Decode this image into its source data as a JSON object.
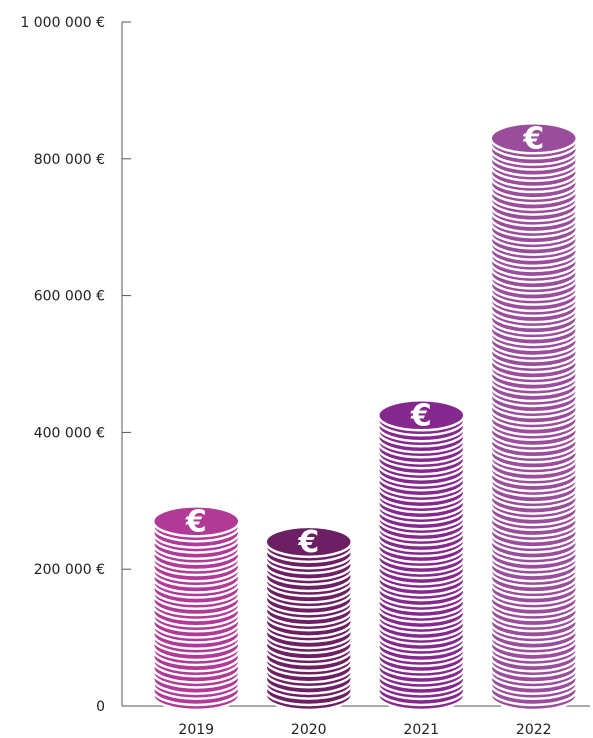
{
  "chart_data": {
    "type": "bar",
    "style": "coin-stacks",
    "categories": [
      "2019",
      "2020",
      "2021",
      "2022"
    ],
    "values": [
      270000,
      240000,
      425000,
      830000
    ],
    "colors": [
      "#b03a96",
      "#6d1f63",
      "#85288e",
      "#9a4d9b"
    ],
    "ylim": [
      0,
      1000000
    ],
    "yticks": [
      {
        "value": 0,
        "label": "0"
      },
      {
        "value": 200000,
        "label": "200 000 €"
      },
      {
        "value": 400000,
        "label": "400 000 €"
      },
      {
        "value": 600000,
        "label": "600 000 €"
      },
      {
        "value": 800000,
        "label": "800 000 €"
      },
      {
        "value": 1000000,
        "label": "1 000 000 €"
      }
    ],
    "coin_symbol": "€",
    "title": "",
    "xlabel": "",
    "ylabel": "",
    "grid": false,
    "legend": "none"
  }
}
